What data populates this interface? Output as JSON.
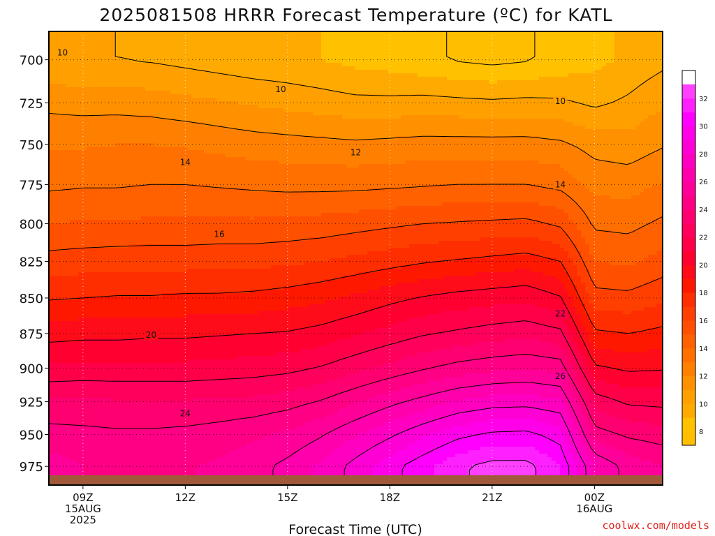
{
  "title": "2025081508 HRRR Forecast Temperature (ºC) for KATL",
  "xlabel": "Forecast Time (UTC)",
  "credit": "coolwx.com/models",
  "x_ticks": [
    {
      "line1": "09Z",
      "line2": "15AUG",
      "line3": "2025",
      "hours": 9
    },
    {
      "line1": "12Z",
      "line2": "",
      "line3": "",
      "hours": 12
    },
    {
      "line1": "15Z",
      "line2": "",
      "line3": "",
      "hours": 15
    },
    {
      "line1": "18Z",
      "line2": "",
      "line3": "",
      "hours": 18
    },
    {
      "line1": "21Z",
      "line2": "",
      "line3": "",
      "hours": 21
    },
    {
      "line1": "00Z",
      "line2": "16AUG",
      "line3": "",
      "hours": 24
    }
  ],
  "chart_data": {
    "type": "heatmap",
    "title": "2025081508 HRRR Forecast Temperature (ºC) for KATL",
    "xlabel": "Forecast Time (UTC)",
    "ylabel": "",
    "x_hours_since_15AUG_00Z": [
      8,
      9,
      10,
      11,
      12,
      13,
      14,
      15,
      16,
      17,
      18,
      19,
      20,
      21,
      22,
      23,
      24,
      25,
      26
    ],
    "xlim_hours": [
      8,
      26
    ],
    "y_pressure_hPa": [
      975,
      950,
      925,
      900,
      875,
      850,
      825,
      800,
      775,
      750,
      725,
      700
    ],
    "ylim_hPa": [
      990,
      684
    ],
    "y_ticks": [
      "700",
      "725",
      "750",
      "775",
      "800",
      "825",
      "850",
      "875",
      "900",
      "925",
      "950",
      "975"
    ],
    "z_units": "°C",
    "colorbar_ticks": [
      "8",
      "10",
      "12",
      "14",
      "16",
      "18",
      "20",
      "22",
      "24",
      "26",
      "28",
      "30",
      "32"
    ],
    "colorbar_levels": [
      7,
      8,
      9,
      10,
      11,
      12,
      13,
      14,
      15,
      16,
      17,
      18,
      19,
      20,
      21,
      22,
      23,
      24,
      25,
      26,
      27,
      28,
      29,
      30,
      31,
      32,
      33,
      34
    ],
    "colorbar_colors": [
      "#FFBE00",
      "#FFC100",
      "#FFAA00",
      "#FFA000",
      "#FF9000",
      "#FF8000",
      "#FF7000",
      "#FF6000",
      "#FF5000",
      "#FF3F00",
      "#FF2E00",
      "#FF1800",
      "#FF0C1A",
      "#FF0030",
      "#FF0048",
      "#FF005C",
      "#FF0070",
      "#FF0084",
      "#FF0098",
      "#FF00AC",
      "#FF00C0",
      "#FF00D4",
      "#FF00E8",
      "#FF00FF",
      "#FF20FF",
      "#FF40FF"
    ],
    "contour_interval_labeled": 2,
    "contour_labels": [
      {
        "value": "10",
        "hours": 8.4,
        "hPa": 696
      },
      {
        "value": "10",
        "hours": 14.8,
        "hPa": 717
      },
      {
        "value": "10",
        "hours": 23.0,
        "hPa": 724
      },
      {
        "value": "12",
        "hours": 17.0,
        "hPa": 755
      },
      {
        "value": "14",
        "hours": 12.0,
        "hPa": 761
      },
      {
        "value": "14",
        "hours": 23.0,
        "hPa": 775
      },
      {
        "value": "16",
        "hours": 13.0,
        "hPa": 807
      },
      {
        "value": "20",
        "hours": 11.0,
        "hPa": 876
      },
      {
        "value": "22",
        "hours": 23.0,
        "hPa": 861
      },
      {
        "value": "24",
        "hours": 12.0,
        "hPa": 934
      },
      {
        "value": "26",
        "hours": 23.0,
        "hPa": 906
      }
    ],
    "temperature_grid": [
      [
        25.5,
        25.0,
        24.7,
        24.7,
        24.9,
        25.2,
        25.6,
        26.3,
        27.2,
        28.4,
        29.6,
        30.7,
        31.8,
        32.4,
        32.4,
        31.0,
        27.0,
        25.6,
        25.0
      ],
      [
        24.4,
        24.3,
        24.2,
        24.2,
        24.3,
        24.5,
        24.8,
        25.2,
        25.9,
        26.9,
        27.8,
        28.8,
        29.7,
        30.2,
        30.3,
        29.5,
        24.5,
        23.8,
        23.5
      ],
      [
        23.2,
        23.2,
        23.1,
        23.1,
        23.1,
        23.2,
        23.3,
        23.6,
        24.1,
        24.9,
        25.7,
        26.4,
        27.1,
        27.5,
        27.6,
        27.2,
        22.6,
        21.8,
        21.7
      ],
      [
        21.2,
        21.3,
        21.3,
        21.3,
        21.3,
        21.4,
        21.5,
        21.7,
        22.1,
        22.7,
        23.3,
        23.9,
        24.4,
        24.7,
        24.9,
        24.6,
        20.2,
        19.8,
        19.9
      ],
      [
        19.6,
        19.7,
        19.7,
        19.8,
        19.8,
        19.9,
        20.0,
        20.1,
        20.4,
        20.9,
        21.4,
        21.9,
        22.2,
        22.5,
        22.7,
        22.3,
        18.2,
        18.0,
        18.3
      ],
      [
        17.9,
        18.0,
        18.1,
        18.1,
        18.2,
        18.2,
        18.3,
        18.5,
        18.8,
        19.2,
        19.7,
        20.1,
        20.4,
        20.6,
        20.8,
        20.1,
        16.4,
        16.3,
        16.8
      ],
      [
        16.4,
        16.5,
        16.6,
        16.6,
        16.6,
        16.7,
        16.7,
        16.8,
        17.0,
        17.3,
        17.6,
        17.9,
        18.1,
        18.3,
        18.5,
        18.0,
        15.0,
        14.8,
        15.4
      ],
      [
        15.0,
        15.1,
        15.1,
        15.2,
        15.2,
        15.2,
        15.2,
        15.3,
        15.4,
        15.6,
        15.8,
        16.0,
        16.1,
        16.2,
        16.3,
        15.8,
        13.8,
        13.7,
        14.2
      ],
      [
        13.8,
        13.9,
        13.9,
        14.0,
        14.0,
        13.9,
        13.8,
        13.7,
        13.7,
        13.7,
        13.8,
        13.9,
        14.0,
        14.0,
        14.0,
        13.7,
        12.7,
        12.6,
        13.1
      ],
      [
        12.9,
        12.9,
        13.0,
        13.0,
        12.9,
        12.7,
        12.5,
        12.4,
        12.3,
        12.2,
        12.3,
        12.4,
        12.4,
        12.4,
        12.4,
        12.2,
        11.6,
        11.4,
        11.9
      ],
      [
        11.7,
        11.6,
        11.6,
        11.5,
        11.3,
        11.1,
        10.9,
        10.7,
        10.5,
        10.3,
        10.3,
        10.4,
        10.3,
        10.2,
        10.3,
        10.2,
        9.8,
        10.2,
        10.9
      ],
      [
        10.1,
        10.0,
        10.0,
        9.9,
        9.7,
        9.5,
        9.3,
        9.2,
        9.0,
        8.7,
        8.5,
        8.2,
        7.9,
        7.7,
        7.9,
        8.3,
        8.7,
        9.2,
        9.7
      ]
    ]
  }
}
